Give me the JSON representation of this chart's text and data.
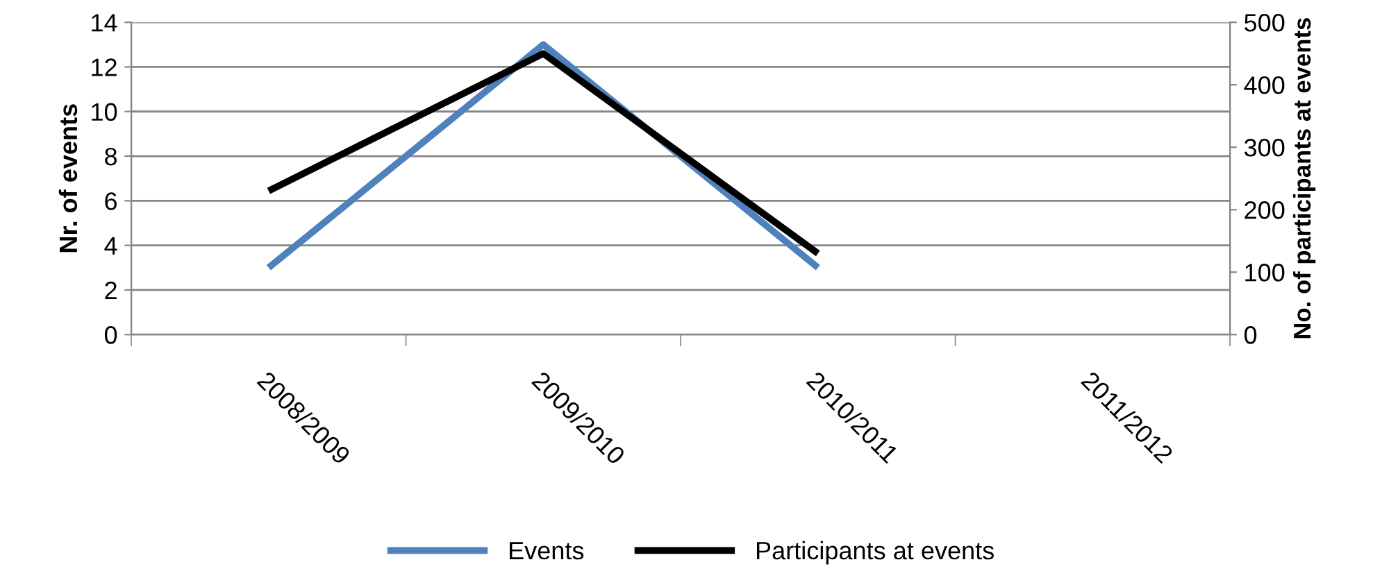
{
  "chart_data": {
    "type": "line",
    "categories": [
      "2008/2009",
      "2009/2010",
      "2010/2011",
      "2011/2012"
    ],
    "ylabel": "Nr. of events",
    "y2label": "No. of participants at events",
    "ylim": [
      0,
      14
    ],
    "yticks": [
      0,
      2,
      4,
      6,
      8,
      10,
      12,
      14
    ],
    "y2lim": [
      0,
      500
    ],
    "y2ticks": [
      0,
      100,
      200,
      300,
      400,
      500
    ],
    "grid": "y",
    "legend": "bottom",
    "marker": "none",
    "line_style": "solid",
    "series": [
      {
        "name": "Events",
        "color": "#4f81bd",
        "values": [
          3,
          13,
          3,
          null
        ]
      },
      {
        "name": "Participants at events",
        "color": "#000000",
        "axis": "y2",
        "values": [
          230,
          450,
          130,
          null
        ]
      }
    ]
  }
}
